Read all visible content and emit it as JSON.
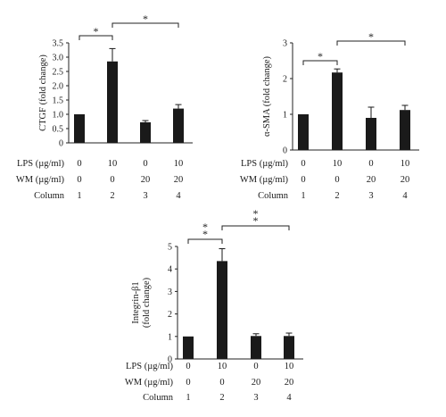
{
  "chart_data": [
    {
      "type": "bar",
      "categories": [
        "1",
        "2",
        "3",
        "4"
      ],
      "values": [
        1.0,
        2.85,
        0.72,
        1.2
      ],
      "errors": [
        0,
        0.45,
        0.06,
        0.14
      ],
      "ylabel": "CTGF (fold change)",
      "ylim": [
        0,
        3.5
      ],
      "yticks": [
        "0",
        "0.5",
        "1.0",
        "1.5",
        "2.0",
        "2.5",
        "3.0",
        "3.5"
      ],
      "significance": [
        {
          "from": 1,
          "to": 2,
          "label": "*"
        },
        {
          "from": 2,
          "to": 4,
          "label": "*"
        }
      ],
      "conditions": [
        {
          "label": "LPS (µg/ml)",
          "values": [
            "0",
            "10",
            "0",
            "10"
          ]
        },
        {
          "label": "WM (µg/ml)",
          "values": [
            "0",
            "0",
            "20",
            "20"
          ]
        },
        {
          "label": "Column",
          "values": [
            "1",
            "2",
            "3",
            "4"
          ]
        }
      ]
    },
    {
      "type": "bar",
      "categories": [
        "1",
        "2",
        "3",
        "4"
      ],
      "values": [
        1.0,
        2.17,
        0.9,
        1.12
      ],
      "errors": [
        0,
        0.1,
        0.3,
        0.13
      ],
      "ylabel": "α-SMA (fold change)",
      "ylim": [
        0,
        3
      ],
      "yticks": [
        "0",
        "1",
        "2",
        "3"
      ],
      "significance": [
        {
          "from": 1,
          "to": 2,
          "label": "*"
        },
        {
          "from": 2,
          "to": 4,
          "label": "*"
        }
      ],
      "conditions": [
        {
          "label": "LPS (µg/ml)",
          "values": [
            "0",
            "10",
            "0",
            "10"
          ]
        },
        {
          "label": "WM (µg/ml)",
          "values": [
            "0",
            "0",
            "20",
            "20"
          ]
        },
        {
          "label": "Column",
          "values": [
            "1",
            "2",
            "3",
            "4"
          ]
        }
      ]
    },
    {
      "type": "bar",
      "categories": [
        "1",
        "2",
        "3",
        "4"
      ],
      "values": [
        1.0,
        4.35,
        1.02,
        1.02
      ],
      "errors": [
        0,
        0.55,
        0.1,
        0.13
      ],
      "ylabel": "Integrin-β1 (fold change)",
      "ylabel_lines": [
        "Integrin-β1",
        "(fold change)"
      ],
      "ylim": [
        0,
        5
      ],
      "yticks": [
        "0",
        "1",
        "2",
        "3",
        "4",
        "5"
      ],
      "significance": [
        {
          "from": 1,
          "to": 2,
          "label": "**"
        },
        {
          "from": 2,
          "to": 4,
          "label": "**"
        }
      ],
      "conditions": [
        {
          "label": "LPS (µg/ml)",
          "values": [
            "0",
            "10",
            "0",
            "10"
          ]
        },
        {
          "label": "WM (µg/ml)",
          "values": [
            "0",
            "0",
            "20",
            "20"
          ]
        },
        {
          "label": "Column",
          "values": [
            "1",
            "2",
            "3",
            "4"
          ]
        }
      ]
    }
  ]
}
